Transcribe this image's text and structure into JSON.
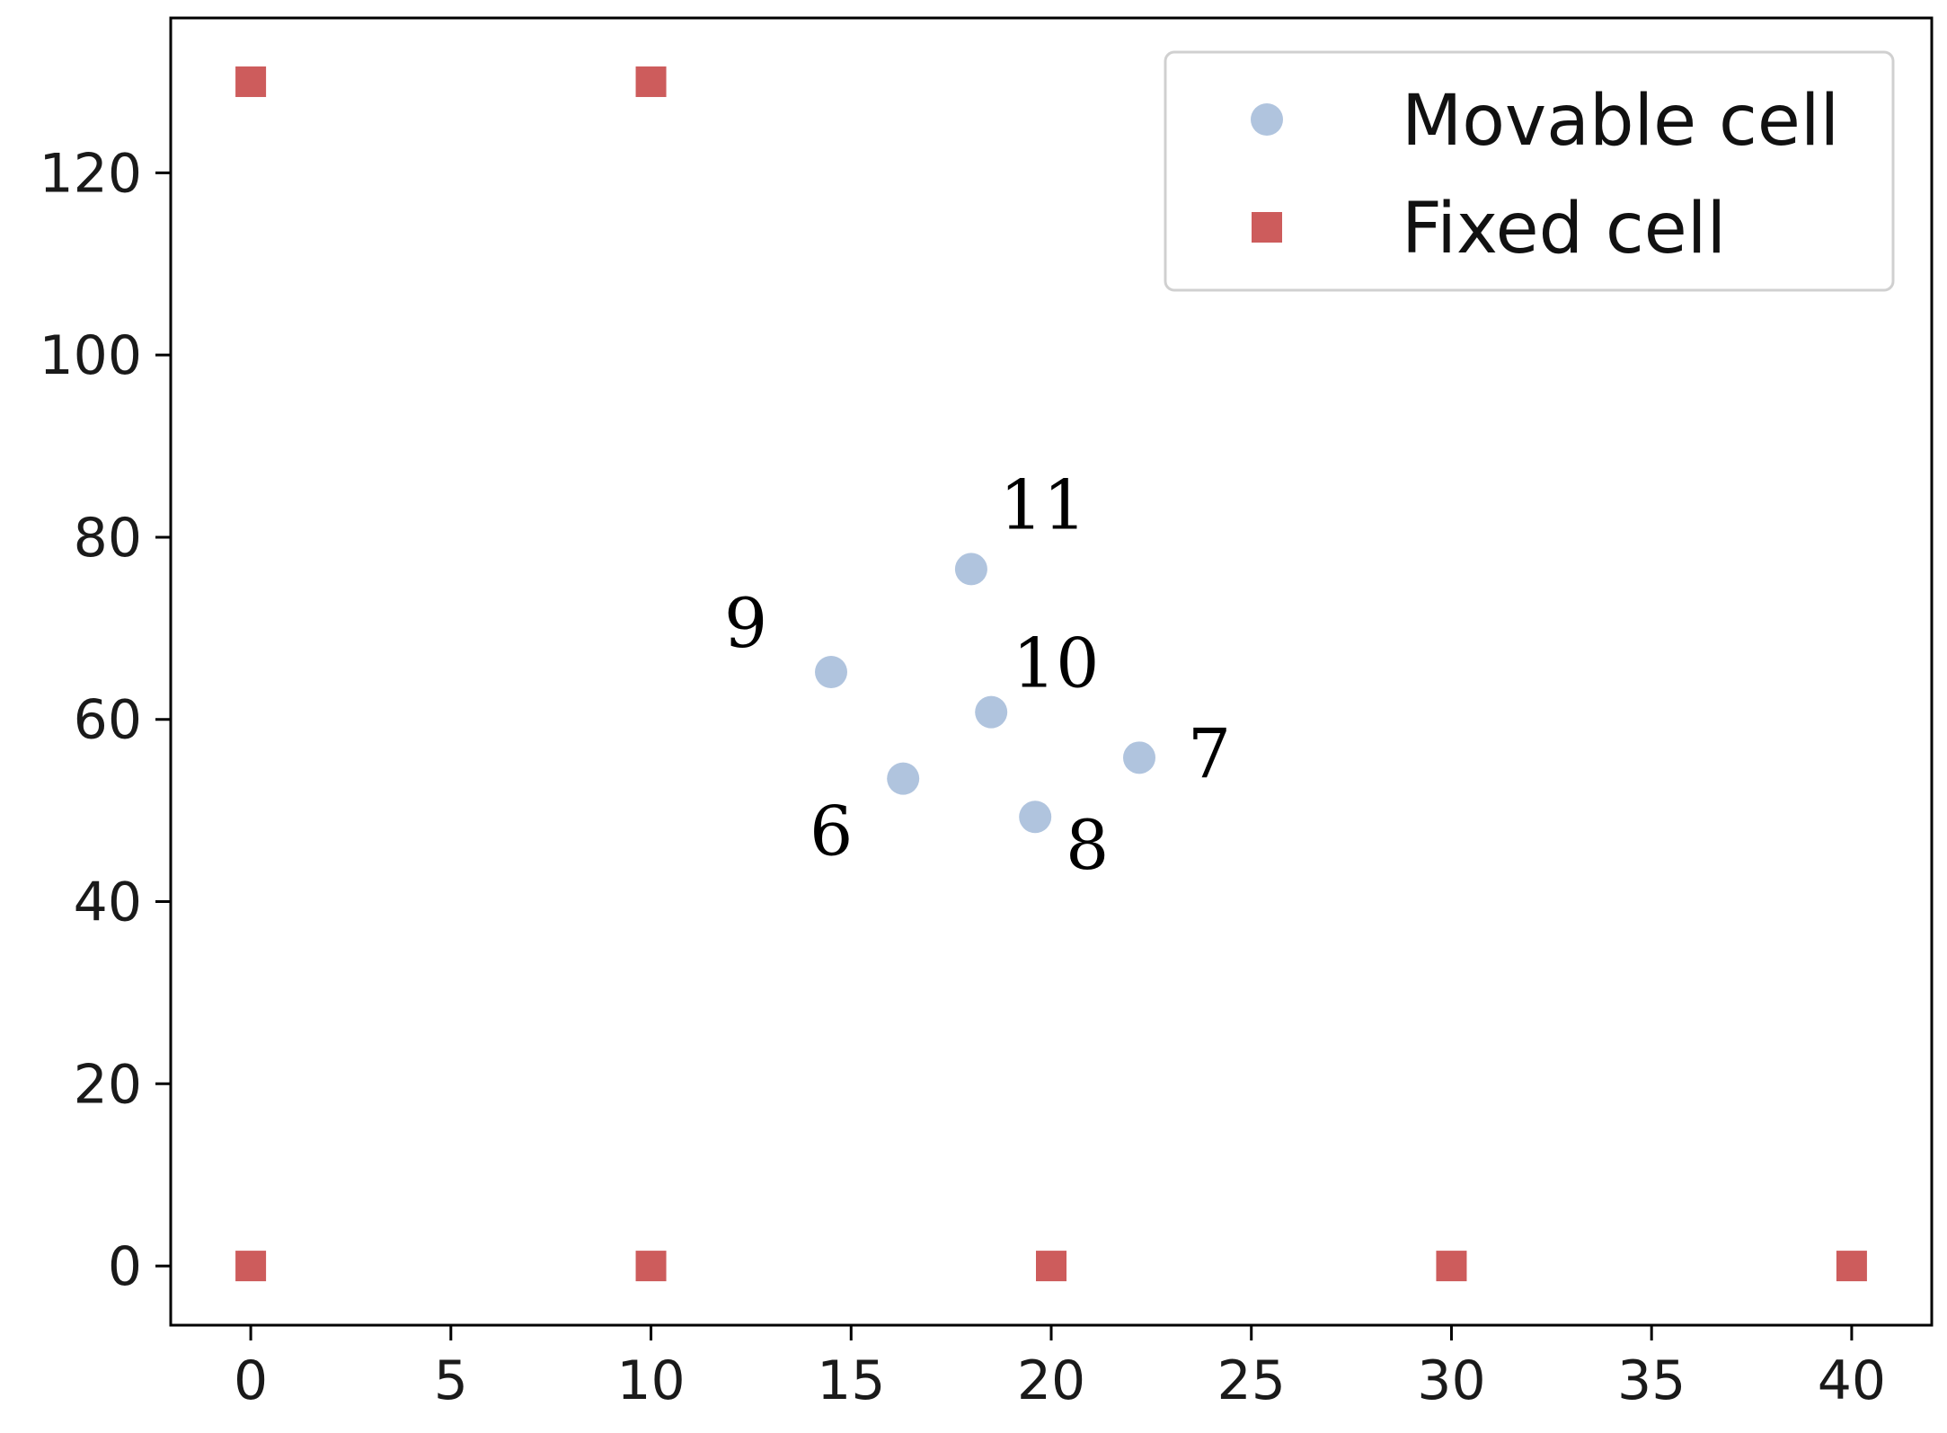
{
  "chart_data": {
    "type": "scatter",
    "title": "",
    "xlabel": "",
    "ylabel": "",
    "xlim": [
      -2,
      42
    ],
    "ylim": [
      -6.5,
      137
    ],
    "x_ticks": [
      0,
      5,
      10,
      15,
      20,
      25,
      30,
      35,
      40
    ],
    "y_ticks": [
      0,
      20,
      40,
      60,
      80,
      100,
      120
    ],
    "x_tick_labels": [
      "0",
      "5",
      "10",
      "15",
      "20",
      "25",
      "30",
      "35",
      "40"
    ],
    "y_tick_labels": [
      "0",
      "20",
      "40",
      "60",
      "80",
      "100",
      "120"
    ],
    "grid": false,
    "legend_position": "top-right",
    "series": [
      {
        "name": "Movable cell",
        "marker": "circle",
        "color": "#b0c4de",
        "points": [
          {
            "label": "6",
            "x": 16.3,
            "y": 53.5
          },
          {
            "label": "7",
            "x": 22.2,
            "y": 55.8
          },
          {
            "label": "8",
            "x": 19.6,
            "y": 49.3
          },
          {
            "label": "9",
            "x": 14.5,
            "y": 65.2
          },
          {
            "label": "10",
            "x": 18.5,
            "y": 60.8
          },
          {
            "label": "11",
            "x": 18.0,
            "y": 76.5
          }
        ]
      },
      {
        "name": "Fixed cell",
        "marker": "square",
        "color": "#cd5c5c",
        "points": [
          {
            "x": 0,
            "y": 130
          },
          {
            "x": 10,
            "y": 130
          },
          {
            "x": 0,
            "y": 0
          },
          {
            "x": 10,
            "y": 0
          },
          {
            "x": 20,
            "y": 0
          },
          {
            "x": 30,
            "y": 0
          },
          {
            "x": 40,
            "y": 0
          }
        ]
      }
    ]
  }
}
